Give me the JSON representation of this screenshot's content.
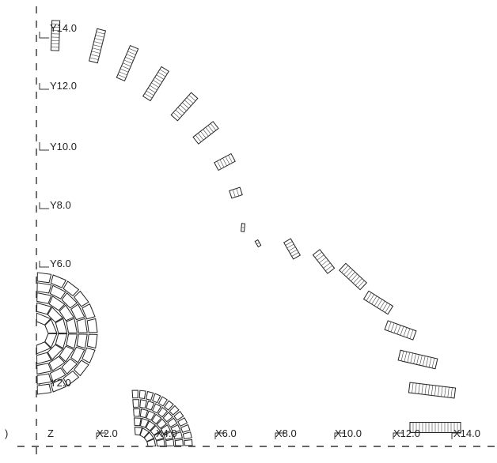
{
  "axis_labels": {
    "origin": "Z",
    "y": [
      "Y2.0",
      "Y6.0",
      "Y8.0",
      "Y10.0",
      "Y12.0",
      "Y14.0"
    ],
    "x": [
      "X2.0",
      "X4.0",
      "X6.0",
      "X8.0",
      "X10.0",
      "X12.0",
      "X14.0"
    ]
  },
  "edge_mark": ")",
  "coil_block_count": 21,
  "inner_coil_count": 2
}
